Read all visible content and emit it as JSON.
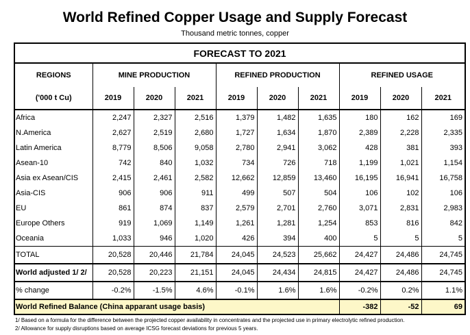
{
  "title": "World Refined Copper Usage and Supply Forecast",
  "subtitle": "Thousand metric tonnes, copper",
  "banner": "FORECAST TO 2021",
  "headers": {
    "regions": "REGIONS",
    "unit": "('000 t Cu)",
    "mine": "MINE PRODUCTION",
    "refined_production": "REFINED PRODUCTION",
    "refined_usage": "REFINED USAGE",
    "years": [
      "2019",
      "2020",
      "2021",
      "2019",
      "2020",
      "2021",
      "2019",
      "2020",
      "2021"
    ]
  },
  "rows": [
    {
      "region": "Africa",
      "values": [
        "2,247",
        "2,327",
        "2,516",
        "1,379",
        "1,482",
        "1,635",
        "180",
        "162",
        "169"
      ]
    },
    {
      "region": "N.America",
      "values": [
        "2,627",
        "2,519",
        "2,680",
        "1,727",
        "1,634",
        "1,870",
        "2,389",
        "2,228",
        "2,335"
      ]
    },
    {
      "region": "Latin America",
      "values": [
        "8,779",
        "8,506",
        "9,058",
        "2,780",
        "2,941",
        "3,062",
        "428",
        "381",
        "393"
      ]
    },
    {
      "region": "Asean-10",
      "values": [
        "742",
        "840",
        "1,032",
        "734",
        "726",
        "718",
        "1,199",
        "1,021",
        "1,154"
      ]
    },
    {
      "region": "Asia ex Asean/CIS",
      "values": [
        "2,415",
        "2,461",
        "2,582",
        "12,662",
        "12,859",
        "13,460",
        "16,195",
        "16,941",
        "16,758"
      ]
    },
    {
      "region": "Asia-CIS",
      "values": [
        "906",
        "906",
        "911",
        "499",
        "507",
        "504",
        "106",
        "102",
        "106"
      ]
    },
    {
      "region": "EU",
      "values": [
        "861",
        "874",
        "837",
        "2,579",
        "2,701",
        "2,760",
        "3,071",
        "2,831",
        "2,983"
      ]
    },
    {
      "region": "Europe Others",
      "values": [
        "919",
        "1,069",
        "1,149",
        "1,261",
        "1,281",
        "1,254",
        "853",
        "816",
        "842"
      ]
    },
    {
      "region": "Oceania",
      "values": [
        "1,033",
        "946",
        "1,020",
        "426",
        "394",
        "400",
        "5",
        "5",
        "5"
      ]
    }
  ],
  "total": {
    "label": "TOTAL",
    "values": [
      "20,528",
      "20,446",
      "21,784",
      "24,045",
      "24,523",
      "25,662",
      "24,427",
      "24,486",
      "24,745"
    ]
  },
  "adjusted": {
    "label": "World adjusted 1/ 2/",
    "values": [
      "20,528",
      "20,223",
      "21,151",
      "24,045",
      "24,434",
      "24,815",
      "24,427",
      "24,486",
      "24,745"
    ]
  },
  "change": {
    "label": "% change",
    "values": [
      "-0.2%",
      "-1.5%",
      "4.6%",
      "-0.1%",
      "1.6%",
      "1.6%",
      "-0.2%",
      "0.2%",
      "1.1%"
    ]
  },
  "balance": {
    "label": "World Refined Balance (China apparant usage basis)",
    "values": [
      "-382",
      "-52",
      "69"
    ]
  },
  "footnotes": [
    "1/ Based on a formula for the difference between the projected copper availability in concentrates and the projected use in primary electrolytic refined production.",
    "2/ Allowance for supply disruptions based on average ICSG forecast deviations for previous 5 years."
  ]
}
